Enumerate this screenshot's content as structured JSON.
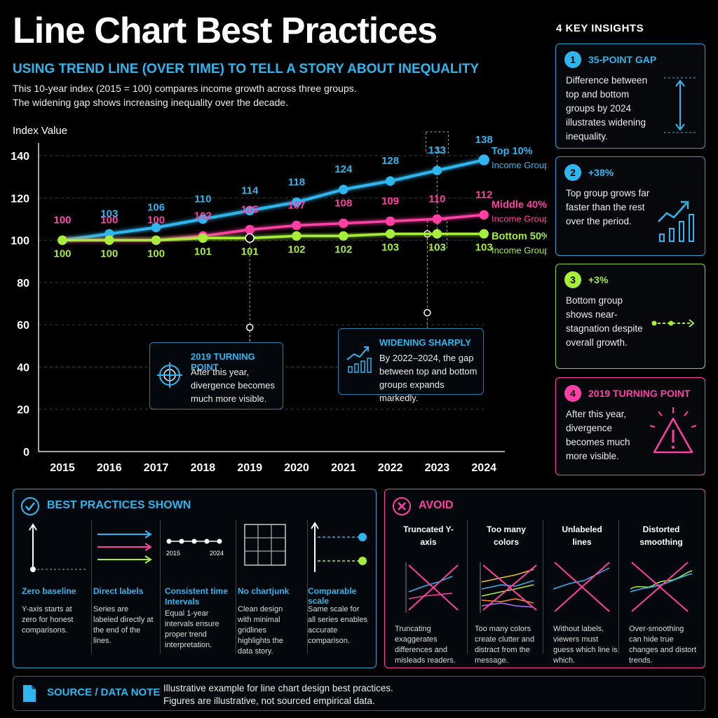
{
  "header": {
    "title": "Line Chart Best Practices",
    "subtitle": "USING TREND LINE (OVER TIME) TO TELL A STORY ABOUT INEQUALITY",
    "intro_line1": "This 10-year index (2015 = 100) compares income growth across three groups.",
    "intro_line2": "The widening gap shows increasing inequality over the decade."
  },
  "colors": {
    "top": "#2fb6ee",
    "middle": "#ff3fa4",
    "bottom": "#a6ee3a",
    "background": "#000000"
  },
  "chart_data": {
    "type": "line",
    "ylabel": "Index Value",
    "ylim": [
      0,
      140
    ],
    "yticks": [
      0,
      20,
      40,
      60,
      80,
      100,
      120,
      140
    ],
    "grid": "horizontal dashed",
    "legend": "direct labels at line ends (right)",
    "x": [
      "2015",
      "2016",
      "2017",
      "2018",
      "2019",
      "2020",
      "2021",
      "2022",
      "2023",
      "2024"
    ],
    "series": [
      {
        "name": "Top 10%",
        "sub": "Income Group",
        "color": "#2fb6ee",
        "values": [
          100,
          103,
          106,
          110,
          114,
          118,
          124,
          128,
          133,
          138
        ]
      },
      {
        "name": "Middle 40%",
        "sub": "Income Group",
        "color": "#ff3fa4",
        "values": [
          100,
          100,
          100,
          102,
          105,
          107,
          108,
          109,
          110,
          112
        ]
      },
      {
        "name": "Bottom 50%",
        "sub": "Income Group",
        "color": "#a6ee3a",
        "values": [
          100,
          100,
          100,
          101,
          101,
          102,
          102,
          103,
          103,
          103
        ]
      }
    ]
  },
  "callouts": {
    "turning": {
      "title": "2019 TURNING POINT",
      "body": "After this year, divergence becomes much more visible."
    },
    "widening": {
      "title": "WIDENING SHARPLY",
      "body": "By 2022–2024, the gap between top and bottom groups expands markedly."
    }
  },
  "insights": {
    "heading": "4 KEY INSIGHTS",
    "items": [
      {
        "num": "1",
        "title": "35-POINT GAP",
        "body": "Difference between top and bottom groups by 2024 illustrates widening inequality.",
        "icon": "double-arrow-icon"
      },
      {
        "num": "2",
        "title": "+38%",
        "body": "Top group grows far faster than the rest over the period.",
        "icon": "growth-bars-icon"
      },
      {
        "num": "3",
        "title": "+3%",
        "body": "Bottom group shows near-stagnation despite overall growth.",
        "icon": "flat-line-icon"
      },
      {
        "num": "4",
        "title": "2019 TURNING POINT",
        "body": "After this year, divergence becomes much more visible.",
        "icon": "warning-icon"
      }
    ]
  },
  "best_practices": {
    "heading": "BEST PRACTICES SHOWN",
    "axis_start": "2015",
    "axis_end": "2024",
    "items": [
      {
        "title": "Zero baseline",
        "body": "Y-axis starts at zero for honest comparisons."
      },
      {
        "title": "Direct labels",
        "body": "Series are labeled directly at the end of the lines."
      },
      {
        "title": "Consistent time Intervals",
        "body": "Equal 1-year intervals ensure proper trend interpretation."
      },
      {
        "title": "No chartjunk",
        "body": "Clean design with minimal gridlines highlights the data story."
      },
      {
        "title": "Comparable scale",
        "body": "Same scale for all series enables accurate comparison."
      }
    ]
  },
  "avoid": {
    "heading": "AVOID",
    "items": [
      {
        "title": "Truncated Y-axis",
        "body": "Truncating exaggerates differences and misleads readers."
      },
      {
        "title": "Too many colors",
        "body": "Too many colors create clutter and distract from the message."
      },
      {
        "title": "Unlabeled lines",
        "body": "Without labels, viewers must guess which line is which."
      },
      {
        "title": "Distorted smoothing",
        "body": "Over-smoothing can hide true changes and distort trends."
      }
    ]
  },
  "source": {
    "heading": "SOURCE / DATA NOTE",
    "line1": "Illustrative example for line chart design best practices.",
    "line2": "Figures are illustrative, not sourced empirical data."
  }
}
